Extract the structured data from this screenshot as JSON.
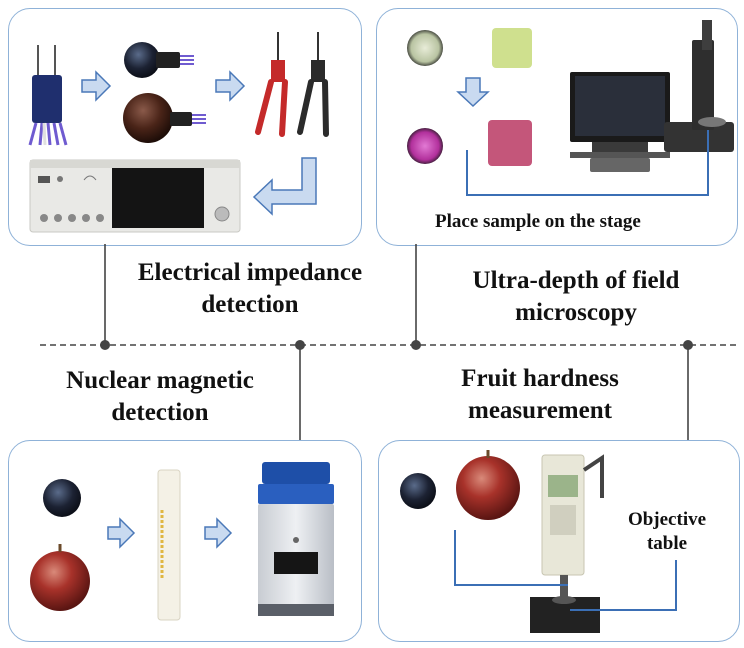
{
  "panels": {
    "electrical": {
      "title_line1": "Electrical impedance",
      "title_line2": "detection"
    },
    "microscopy": {
      "title_line1": "Ultra-depth of field",
      "title_line2": "microscopy",
      "caption": "Place sample on the stage"
    },
    "nmr": {
      "title_line1": "Nuclear magnetic",
      "title_line2": "detection"
    },
    "hardness": {
      "title_line1": "Fruit hardness",
      "title_line2": "measurement",
      "label_line1": "Objective",
      "label_line2": "table"
    }
  },
  "colors": {
    "panel_border": "#8fb2d8",
    "arrow_fill": "#c9daf0",
    "arrow_stroke": "#4a78b8",
    "connector": "#3b6fb5",
    "timeline": "#444444"
  }
}
